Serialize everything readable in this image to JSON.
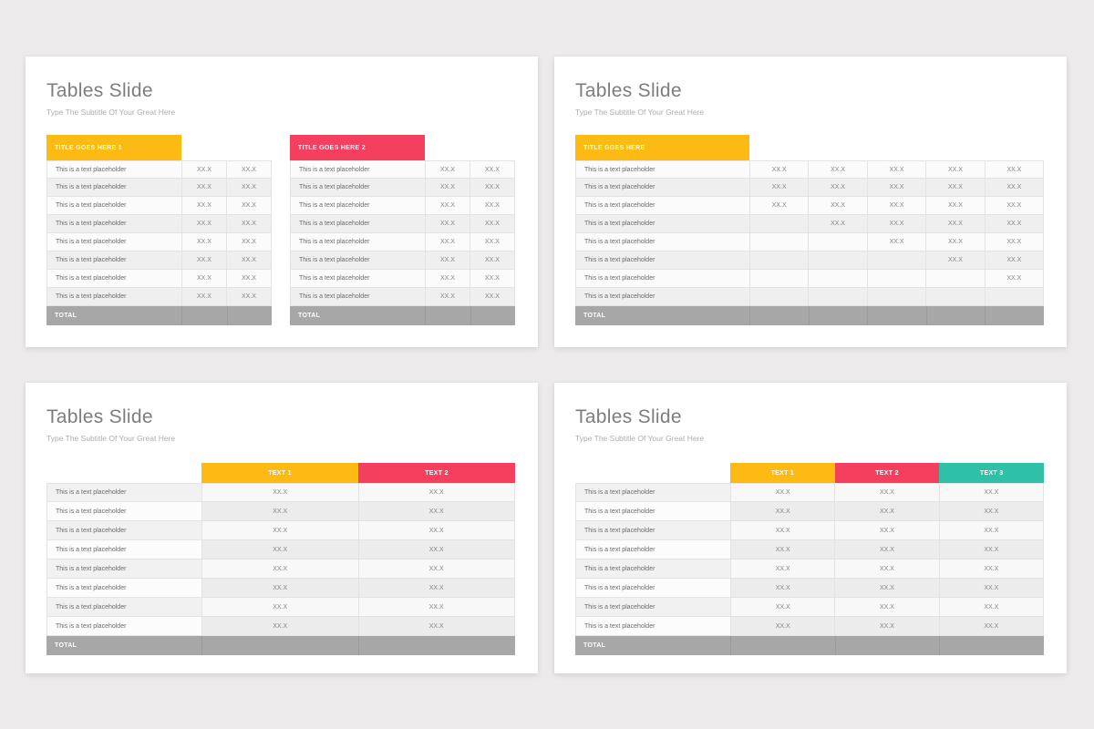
{
  "page": {
    "background": "#ECEAEA"
  },
  "colors": {
    "yellow": "#FDBA12",
    "pink": "#F43F5F",
    "teal": "#2FC1A7",
    "total_gray": "#A7A7A7"
  },
  "cell_value": "XX.X",
  "slides": [
    {
      "title": "Tables Slide",
      "subtitle": "Type The Subtitle Of Your Great Here",
      "tables": [
        {
          "layout": "t-a",
          "header_mode": "label",
          "title": "TITLE GOES HERE 1",
          "title_color": "#FDBA12",
          "row_label": "This is a text placeholder",
          "total_label": "TOTAL",
          "value_rows": [
            [
              "XX.X",
              "XX.X"
            ],
            [
              "XX.X",
              "XX.X"
            ],
            [
              "XX.X",
              "XX.X"
            ],
            [
              "XX.X",
              "XX.X"
            ],
            [
              "XX.X",
              "XX.X"
            ],
            [
              "XX.X",
              "XX.X"
            ],
            [
              "XX.X",
              "XX.X"
            ],
            [
              "XX.X",
              "XX.X"
            ]
          ]
        },
        {
          "layout": "t-a",
          "header_mode": "label",
          "title": "TITLE GOES HERE 2",
          "title_color": "#F43F5F",
          "row_label": "This is a text placeholder",
          "total_label": "TOTAL",
          "value_rows": [
            [
              "XX.X",
              "XX.X"
            ],
            [
              "XX.X",
              "XX.X"
            ],
            [
              "XX.X",
              "XX.X"
            ],
            [
              "XX.X",
              "XX.X"
            ],
            [
              "XX.X",
              "XX.X"
            ],
            [
              "XX.X",
              "XX.X"
            ],
            [
              "XX.X",
              "XX.X"
            ],
            [
              "XX.X",
              "XX.X"
            ]
          ]
        }
      ]
    },
    {
      "title": "Tables Slide",
      "subtitle": "Type The Subtitle Of Your Great Here",
      "tables": [
        {
          "layout": "t-b",
          "header_mode": "label",
          "title": "TITLE GOES HERE",
          "title_color": "#FDBA12",
          "row_label": "This is a text placeholder",
          "total_label": "TOTAL",
          "value_rows": [
            [
              "XX.X",
              "XX.X",
              "XX.X",
              "XX.X",
              "XX.X"
            ],
            [
              "XX.X",
              "XX.X",
              "XX.X",
              "XX.X",
              "XX.X"
            ],
            [
              "XX.X",
              "XX.X",
              "XX.X",
              "XX.X",
              "XX.X"
            ],
            [
              "",
              "XX.X",
              "XX.X",
              "XX.X",
              "XX.X"
            ],
            [
              "",
              "",
              "XX.X",
              "XX.X",
              "XX.X"
            ],
            [
              "",
              "",
              "",
              "XX.X",
              "XX.X"
            ],
            [
              "",
              "",
              "",
              "",
              "XX.X"
            ],
            [
              "",
              "",
              "",
              "",
              ""
            ]
          ]
        }
      ]
    },
    {
      "title": "Tables Slide",
      "subtitle": "Type The Subtitle Of Your Great Here",
      "tables": [
        {
          "layout": "t-c",
          "header_mode": "columns",
          "value_headers": [
            {
              "label": "TEXT 1",
              "color": "#FDBA12"
            },
            {
              "label": "TEXT 2",
              "color": "#F43F5F"
            }
          ],
          "row_label": "This is a text placeholder",
          "total_label": "TOTAL",
          "value_rows": [
            [
              "XX.X",
              "XX.X"
            ],
            [
              "XX.X",
              "XX.X"
            ],
            [
              "XX.X",
              "XX.X"
            ],
            [
              "XX.X",
              "XX.X"
            ],
            [
              "XX.X",
              "XX.X"
            ],
            [
              "XX.X",
              "XX.X"
            ],
            [
              "XX.X",
              "XX.X"
            ],
            [
              "XX.X",
              "XX.X"
            ]
          ]
        }
      ]
    },
    {
      "title": "Tables Slide",
      "subtitle": "Type The Subtitle Of Your Great Here",
      "tables": [
        {
          "layout": "t-c",
          "header_mode": "columns",
          "value_headers": [
            {
              "label": "TEXT 1",
              "color": "#FDBA12"
            },
            {
              "label": "TEXT 2",
              "color": "#F43F5F"
            },
            {
              "label": "TEXT 3",
              "color": "#2FC1A7"
            }
          ],
          "row_label": "This is a text placeholder",
          "total_label": "TOTAL",
          "value_rows": [
            [
              "XX.X",
              "XX.X",
              "XX.X"
            ],
            [
              "XX.X",
              "XX.X",
              "XX.X"
            ],
            [
              "XX.X",
              "XX.X",
              "XX.X"
            ],
            [
              "XX.X",
              "XX.X",
              "XX.X"
            ],
            [
              "XX.X",
              "XX.X",
              "XX.X"
            ],
            [
              "XX.X",
              "XX.X",
              "XX.X"
            ],
            [
              "XX.X",
              "XX.X",
              "XX.X"
            ],
            [
              "XX.X",
              "XX.X",
              "XX.X"
            ]
          ]
        }
      ]
    }
  ]
}
